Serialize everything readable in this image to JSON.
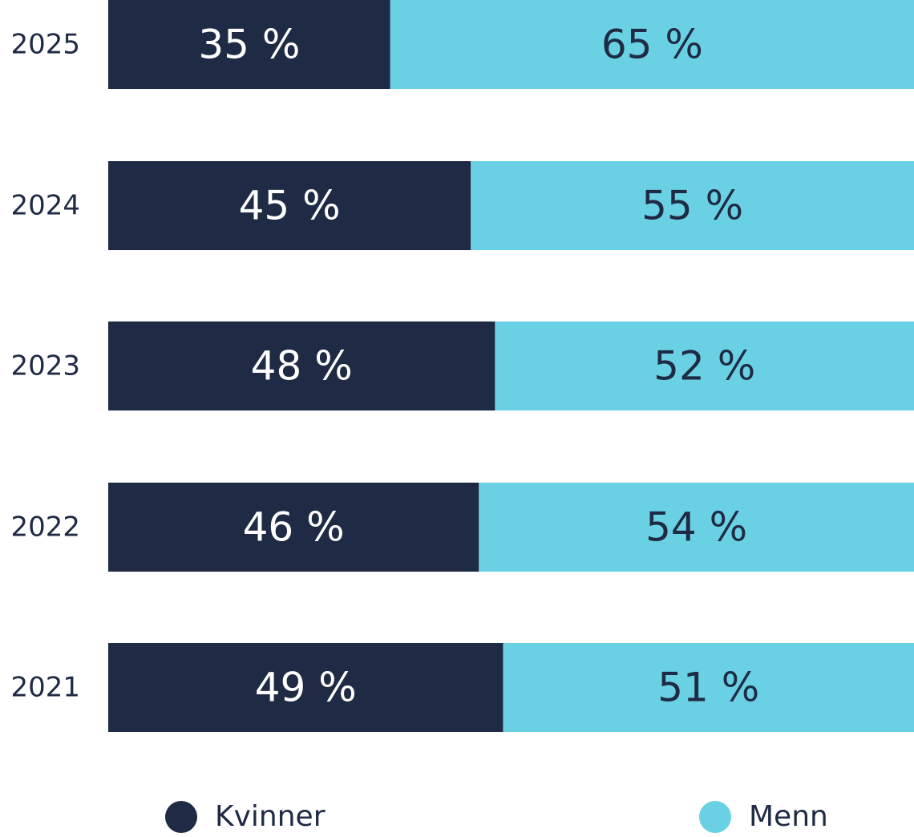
{
  "colors": {
    "kvinner": "#1f2a44",
    "menn": "#69d1e3",
    "text_dark": "#1f2a44",
    "text_light": "#ffffff"
  },
  "legend": {
    "kvinner_label": "Kvinner",
    "menn_label": "Menn"
  },
  "chart_data": {
    "type": "bar",
    "orientation": "horizontal",
    "stacked": true,
    "normalized": true,
    "categories": [
      "2025",
      "2024",
      "2023",
      "2022",
      "2021"
    ],
    "series": [
      {
        "name": "Kvinner",
        "values": [
          35,
          45,
          48,
          46,
          49
        ],
        "labels": [
          "35 %",
          "45 %",
          "48 %",
          "46 %",
          "49 %"
        ]
      },
      {
        "name": "Menn",
        "values": [
          65,
          55,
          52,
          54,
          51
        ],
        "labels": [
          "65 %",
          "55 %",
          "52 %",
          "54 %",
          "51 %"
        ]
      }
    ],
    "xlim": [
      0,
      100
    ],
    "grid": false,
    "legend_position": "bottom"
  }
}
